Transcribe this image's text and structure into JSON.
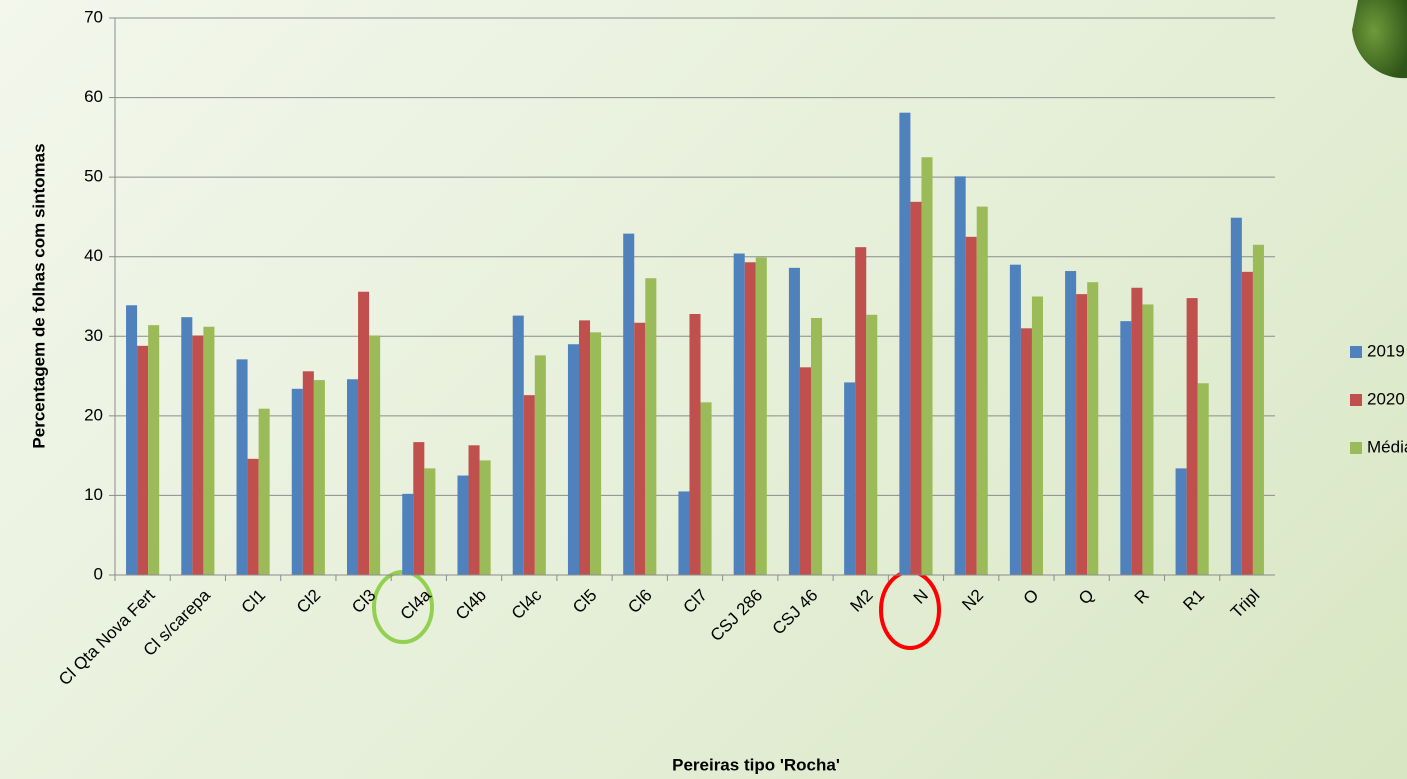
{
  "chart_data": {
    "type": "bar",
    "x_label": "Pereiras tipo 'Rocha'",
    "y_label": "Percentagem de folhas com sintomas",
    "categories": [
      "Cl Qta Nova Fert",
      "Cl s/carepa",
      "Cl1",
      "Cl2",
      "Cl3",
      "Cl4a",
      "Cl4b",
      "Cl4c",
      "Cl5",
      "Cl6",
      "Cl7",
      "CSJ 286",
      "CSJ 46",
      "M2",
      "N",
      "N2",
      "O",
      "Q",
      "R",
      "R1",
      "Tripl"
    ],
    "series": [
      {
        "name": "2019",
        "color": "#4f81bd",
        "values": [
          33.9,
          32.4,
          27.1,
          23.4,
          24.6,
          10.2,
          12.5,
          32.6,
          29.0,
          42.9,
          10.5,
          40.4,
          38.6,
          24.2,
          58.1,
          50.1,
          39.0,
          38.2,
          31.9,
          13.4,
          44.9
        ]
      },
      {
        "name": "2020",
        "color": "#c0504d",
        "values": [
          28.8,
          30.1,
          14.6,
          25.6,
          35.6,
          16.7,
          16.3,
          22.6,
          32.0,
          31.7,
          32.8,
          39.3,
          26.1,
          41.2,
          46.9,
          42.5,
          31.0,
          35.3,
          36.1,
          34.8,
          38.1
        ]
      },
      {
        "name": "Média",
        "color": "#9bbb59",
        "values": [
          31.4,
          31.2,
          20.9,
          24.5,
          30.1,
          13.4,
          14.4,
          27.6,
          30.5,
          37.3,
          21.7,
          39.9,
          32.3,
          32.7,
          52.5,
          46.3,
          35.0,
          36.8,
          34.0,
          24.1,
          41.5
        ]
      }
    ],
    "ylim": [
      0,
      70
    ],
    "yticks": [
      0,
      10,
      20,
      30,
      40,
      50,
      60,
      70
    ],
    "grid": true,
    "legend": "right"
  }
}
